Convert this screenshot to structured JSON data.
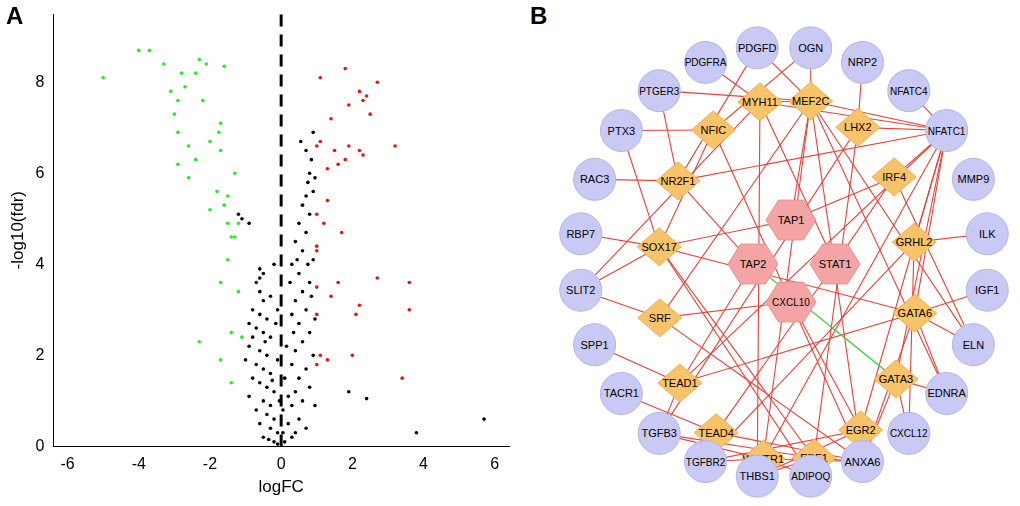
{
  "chart_data": {
    "panel": "A",
    "type": "scatter",
    "x_label": "logFC",
    "y_label": "-log10(fdr)",
    "xlim": [
      -6.4,
      6.4
    ],
    "xticks": [
      -6,
      -4,
      -2,
      0,
      2,
      4,
      6
    ],
    "ylim": [
      0,
      9.5
    ],
    "yticks": [
      0,
      2,
      4,
      6,
      8
    ],
    "grid": false,
    "reference_line": {
      "x": 0,
      "color": "#000000",
      "line_style": "dashed"
    },
    "series": [
      {
        "color": "#22ee22",
        "marker": "circle",
        "x": [
          -5.0,
          -4.0,
          -3.7,
          -3.3,
          -3.1,
          -2.9,
          -2.8,
          -2.7,
          -2.3,
          -2.4,
          -2.1,
          -2.2,
          -1.6,
          -3.0,
          -2.9,
          -2.6,
          -2.0,
          -1.7,
          -1.75,
          -2.4,
          -1.7,
          -2.9,
          -2.6,
          -1.3,
          -1.8,
          -1.5,
          -1.6,
          -2.0,
          -1.2,
          -1.4,
          -1.3,
          -1.5,
          -1.5,
          -1.7,
          -1.2,
          -1.4,
          -2.3,
          -1.1,
          -1.7,
          -1.4
        ],
        "values": [
          8.1,
          8.7,
          8.7,
          8.4,
          7.8,
          7.6,
          8.2,
          7.9,
          8.5,
          8.2,
          8.4,
          7.6,
          8.35,
          7.3,
          6.9,
          6.6,
          6.7,
          7.1,
          6.9,
          6.3,
          6.5,
          6.2,
          5.9,
          6.0,
          5.6,
          5.5,
          5.3,
          5.2,
          4.9,
          4.6,
          4.6,
          4.9,
          4.1,
          3.6,
          3.4,
          2.5,
          2.3,
          2.4,
          1.9,
          1.4
        ]
      },
      {
        "color": "#ee1111",
        "marker": "circle",
        "x": [
          1.1,
          1.8,
          1.9,
          2.4,
          2.2,
          2.7,
          2.5,
          2.3,
          1.4,
          1.0,
          1.1,
          1.5,
          1.6,
          1.3,
          1.8,
          2.2,
          2.3,
          1.9,
          3.2,
          1.0,
          1.3,
          1.2,
          1.7,
          1.0,
          1.0,
          1.0,
          1.6,
          2.7,
          3.6,
          3.6,
          1.4,
          1.0,
          2.2,
          2.1,
          1.1,
          1.3,
          1.0,
          3.4,
          2.0
        ],
        "values": [
          8.1,
          8.3,
          7.5,
          7.7,
          7.8,
          8.0,
          7.3,
          7.6,
          7.2,
          6.6,
          6.7,
          6.5,
          6.2,
          6.1,
          6.3,
          6.5,
          6.4,
          6.6,
          6.6,
          5.1,
          5.4,
          4.9,
          4.7,
          4.4,
          4.3,
          3.5,
          3.6,
          3.7,
          3.6,
          3.0,
          3.3,
          2.9,
          3.1,
          2.9,
          2.0,
          1.9,
          1.8,
          1.5,
          2.0
        ]
      },
      {
        "color": "#000000",
        "marker": "circle",
        "x": [
          -1.2,
          -1.1,
          -0.9,
          -0.6,
          -0.6,
          -0.5,
          -0.7,
          -0.6,
          -0.5,
          -0.8,
          -0.6,
          -0.4,
          -0.9,
          -0.7,
          -0.5,
          -0.3,
          -0.9,
          -0.6,
          -0.4,
          -1.0,
          -0.7,
          -0.5,
          -0.3,
          -0.8,
          -0.6,
          -0.4,
          -0.2,
          -0.9,
          -0.5,
          -0.3,
          -0.7,
          -0.4,
          -0.2,
          -0.6,
          -0.3,
          -0.1,
          -0.5,
          -0.2,
          -0.1,
          -0.35,
          -0.1,
          -0.2,
          -0.15,
          -0.1,
          -0.05,
          0.05,
          0.1,
          0.15,
          0.2,
          0.1,
          0.05,
          0.2,
          0.3,
          0.4,
          0.5,
          0.3,
          0.4,
          0.6,
          0.5,
          0.3,
          0.7,
          0.4,
          0.6,
          0.8,
          0.5,
          0.3,
          0.7,
          0.4,
          0.6,
          0.8,
          0.5,
          0.3,
          0.9,
          0.6,
          0.4,
          0.7,
          0.5,
          0.8,
          0.6,
          0.7,
          0.75,
          0.8,
          0.9,
          0.95,
          0.85,
          0.7,
          0.55,
          0.9,
          0.75,
          0.85,
          0.95,
          0.9,
          0.8,
          0.95,
          0.7,
          0.35,
          0.25,
          0.45,
          1.9,
          2.4,
          3.8,
          5.7,
          -0.3,
          -0.45,
          -0.25,
          -0.8
        ],
        "values": [
          5.1,
          5.0,
          4.9,
          3.9,
          3.7,
          3.8,
          3.6,
          3.4,
          3.2,
          3.0,
          2.9,
          2.8,
          2.7,
          2.6,
          2.5,
          2.4,
          2.2,
          2.1,
          2.0,
          1.9,
          1.8,
          1.7,
          1.6,
          1.5,
          1.4,
          1.3,
          1.2,
          1.1,
          1.0,
          0.9,
          0.8,
          0.7,
          0.6,
          0.5,
          0.4,
          0.3,
          0.2,
          0.1,
          0.05,
          0.15,
          3.0,
          4.0,
          2.7,
          1.9,
          1.0,
          0.8,
          1.5,
          2.2,
          0.5,
          0.1,
          0.3,
          1.1,
          0.2,
          0.3,
          0.6,
          0.9,
          1.2,
          1.0,
          1.5,
          1.8,
          1.7,
          2.1,
          2.3,
          2.5,
          2.7,
          2.9,
          3.0,
          3.2,
          3.4,
          3.6,
          3.8,
          4.0,
          4.1,
          4.3,
          4.5,
          4.7,
          4.9,
          5.1,
          5.3,
          5.5,
          5.8,
          6.0,
          5.6,
          5.9,
          6.3,
          6.5,
          6.7,
          6.9,
          4.0,
          3.3,
          2.8,
          2.0,
          1.3,
          0.9,
          0.4,
          2.5,
          3.6,
          4.1,
          1.2,
          1.05,
          0.3,
          0.6,
          3.3,
          2.3,
          1.45,
          2.4
        ]
      }
    ]
  },
  "diagram": {
    "panel": "B",
    "node_groups": [
      {
        "shape": "hexagon",
        "color": "#f4a4a4",
        "nodes": [
          "TAP1",
          "TAP2",
          "STAT1",
          "CXCL10"
        ]
      },
      {
        "shape": "diamond",
        "color": "#f9c36a",
        "nodes": [
          "MYH11",
          "MEF2C",
          "LHX2",
          "IRF4",
          "GRHL2",
          "GATA6",
          "GATA3",
          "EGR2",
          "EBF1",
          "WWTR1",
          "TEAD4",
          "TEAD1",
          "SRF",
          "SOX17",
          "NR2F1",
          "NFIC"
        ]
      },
      {
        "shape": "circle",
        "color": "#c9c9f5",
        "nodes": [
          "PDGFD",
          "OGN",
          "NRP2",
          "NFATC4",
          "NFATC1",
          "MMP9",
          "ILK",
          "IGF1",
          "ELN",
          "EDNRA",
          "CXCL12",
          "ANXA6",
          "ADIPOQ",
          "THBS1",
          "TGFBR2",
          "TGFB3",
          "TACR1",
          "SPP1",
          "SLIT2",
          "RBP7",
          "RAC3",
          "PTX3",
          "PTGER3",
          "PDGFRA"
        ]
      }
    ],
    "edge_color": "#e8403a",
    "edges": [
      [
        "MEF2C",
        "NFATC1"
      ],
      [
        "MEF2C",
        "MYH11"
      ],
      [
        "MEF2C",
        "PDGFD"
      ],
      [
        "MEF2C",
        "OGN"
      ],
      [
        "MEF2C",
        "ANXA6"
      ],
      [
        "MEF2C",
        "ELN"
      ],
      [
        "MEF2C",
        "EDNRA"
      ],
      [
        "MEF2C",
        "TAP1"
      ],
      [
        "MEF2C",
        "PTGER3"
      ],
      [
        "MEF2C",
        "WWTR1"
      ],
      [
        "MYH11",
        "PDGFRA"
      ],
      [
        "MYH11",
        "NFATC1"
      ],
      [
        "MYH11",
        "STAT1"
      ],
      [
        "MYH11",
        "SLIT2"
      ],
      [
        "MYH11",
        "THBS1"
      ],
      [
        "NFIC",
        "OGN"
      ],
      [
        "NFIC",
        "PTX3"
      ],
      [
        "NFIC",
        "SOX17"
      ],
      [
        "NFIC",
        "ANXA6"
      ],
      [
        "NR2F1",
        "PTGER3"
      ],
      [
        "NR2F1",
        "PDGFD"
      ],
      [
        "NR2F1",
        "RAC3"
      ],
      [
        "NR2F1",
        "NFATC1"
      ],
      [
        "NR2F1",
        "TAP2"
      ],
      [
        "LHX2",
        "NRP2"
      ],
      [
        "LHX2",
        "NFATC1"
      ],
      [
        "LHX2",
        "EBF1"
      ],
      [
        "LHX2",
        "TGFB3"
      ],
      [
        "IRF4",
        "NFATC1"
      ],
      [
        "IRF4",
        "TAP1"
      ],
      [
        "IRF4",
        "STAT1"
      ],
      [
        "IRF4",
        "ELN"
      ],
      [
        "SOX17",
        "PTX3"
      ],
      [
        "SOX17",
        "RBP7"
      ],
      [
        "SOX17",
        "SLIT2"
      ],
      [
        "SOX17",
        "TAP1"
      ],
      [
        "SOX17",
        "GATA6"
      ],
      [
        "SOX17",
        "ADIPOQ"
      ],
      [
        "GRHL2",
        "NFATC1"
      ],
      [
        "GRHL2",
        "ILK"
      ],
      [
        "GRHL2",
        "TGFBR2"
      ],
      [
        "GRHL2",
        "CXCL12"
      ],
      [
        "SRF",
        "SLIT2"
      ],
      [
        "SRF",
        "MEF2C"
      ],
      [
        "SRF",
        "CXCL10"
      ],
      [
        "SRF",
        "ANXA6"
      ],
      [
        "GATA6",
        "NFATC1"
      ],
      [
        "GATA6",
        "ELN"
      ],
      [
        "GATA6",
        "IGF1"
      ],
      [
        "GATA6",
        "EDNRA"
      ],
      [
        "GATA6",
        "ANXA6"
      ],
      [
        "GATA6",
        "TEAD1"
      ],
      [
        "TEAD1",
        "SPP1"
      ],
      [
        "TEAD1",
        "TGFB3"
      ],
      [
        "TEAD1",
        "TAP2"
      ],
      [
        "TEAD1",
        "NFATC1"
      ],
      [
        "GATA3",
        "CXCL12"
      ],
      [
        "GATA3",
        "EDNRA"
      ],
      [
        "GATA3",
        "ANXA6"
      ],
      [
        "GATA3",
        "NFATC1"
      ],
      [
        "TEAD4",
        "TACR1"
      ],
      [
        "TEAD4",
        "ANXA6"
      ],
      [
        "TEAD4",
        "STAT1"
      ],
      [
        "EGR2",
        "ANXA6"
      ],
      [
        "EGR2",
        "NFATC1"
      ],
      [
        "EGR2",
        "TGFBR2"
      ],
      [
        "EGR2",
        "THBS1"
      ],
      [
        "EGR2",
        "CXCL10"
      ],
      [
        "WWTR1",
        "TGFB3"
      ],
      [
        "WWTR1",
        "TGFBR2"
      ],
      [
        "WWTR1",
        "ADIPOQ"
      ],
      [
        "WWTR1",
        "ANXA6"
      ],
      [
        "WWTR1",
        "NFATC1"
      ],
      [
        "EBF1",
        "THBS1"
      ],
      [
        "EBF1",
        "ADIPOQ"
      ],
      [
        "EBF1",
        "ANXA6"
      ],
      [
        "EBF1",
        "TGFB3"
      ],
      [
        "EBF1",
        "SOX17"
      ],
      [
        "NFATC4",
        "NFATC1"
      ]
    ],
    "highlighted_edges": [
      {
        "source": "TAP2",
        "target": "GATA3",
        "color": "#44cc44"
      }
    ]
  }
}
